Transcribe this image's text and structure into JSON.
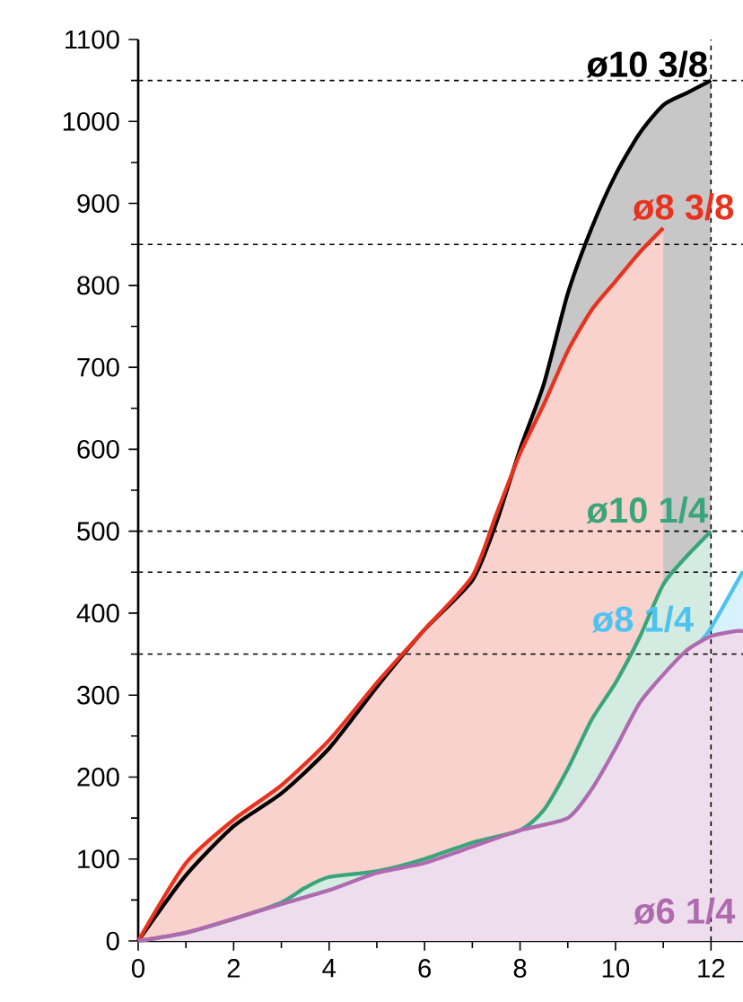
{
  "chart_data": {
    "type": "area",
    "xlim": [
      0,
      12.67
    ],
    "ylim": [
      0,
      1100
    ],
    "xticks": [
      0,
      {
        "value": 1,
        "label": null
      },
      2,
      {
        "value": 3,
        "label": null
      },
      4,
      {
        "value": 5,
        "label": null
      },
      6,
      {
        "value": 7,
        "label": null
      },
      8,
      {
        "value": 9,
        "label": null
      },
      10,
      {
        "value": 11,
        "label": null
      },
      12
    ],
    "yticks": [
      0,
      {
        "value": 50,
        "label": null
      },
      100,
      {
        "value": 150,
        "label": null
      },
      200,
      {
        "value": 250,
        "label": null
      },
      300,
      {
        "value": 350,
        "label": null
      },
      400,
      {
        "value": 450,
        "label": null
      },
      500,
      {
        "value": 550,
        "label": null
      },
      600,
      {
        "value": 650,
        "label": null
      },
      700,
      {
        "value": 750,
        "label": null
      },
      800,
      {
        "value": 850,
        "label": null
      },
      900,
      {
        "value": 950,
        "label": null
      },
      1000,
      {
        "value": 1050,
        "label": null
      },
      1100
    ],
    "line_style": "solid",
    "marker": "none",
    "grid": false,
    "series": [
      {
        "name": "ø10 3/8",
        "color": "#000000",
        "x": [
          0,
          1,
          2,
          3,
          4,
          5,
          6,
          7,
          7.5,
          8,
          8.5,
          9,
          9.5,
          10,
          10.5,
          11,
          11.5,
          12
        ],
        "values": [
          0,
          80,
          140,
          180,
          235,
          310,
          380,
          440,
          510,
          600,
          680,
          790,
          870,
          935,
          985,
          1020,
          1035,
          1050
        ]
      },
      {
        "name": "ø8 3/8",
        "color": "#e8321e",
        "x": [
          0,
          1,
          2,
          3,
          4,
          5,
          6,
          7,
          7.5,
          8,
          8.5,
          9,
          9.5,
          10,
          10.5,
          11
        ],
        "values": [
          0,
          95,
          148,
          190,
          245,
          315,
          380,
          445,
          520,
          595,
          655,
          720,
          770,
          805,
          840,
          870
        ]
      },
      {
        "name": "ø10 1/4",
        "color": "#3aa57a",
        "x": [
          0,
          1,
          2,
          3,
          3.5,
          4,
          5,
          6,
          7,
          8,
          8.5,
          9,
          9.5,
          10,
          10.5,
          11,
          11.5,
          12
        ],
        "values": [
          0,
          10,
          27,
          47,
          65,
          78,
          85,
          100,
          120,
          135,
          160,
          210,
          270,
          315,
          370,
          435,
          470,
          500
        ]
      },
      {
        "name": "ø8 1/4",
        "color": "#4fc3f0",
        "x": [
          11.8,
          12,
          12.67
        ],
        "values": [
          367,
          382,
          451
        ]
      },
      {
        "name": "ø6 1/4",
        "color": "#b06aaf",
        "x": [
          0,
          1,
          2,
          3,
          4,
          5,
          6,
          7,
          8,
          9,
          9.5,
          10,
          10.5,
          11,
          11.5,
          12,
          12.5,
          12.67
        ],
        "values": [
          0,
          10,
          27,
          45,
          62,
          83,
          95,
          115,
          135,
          150,
          185,
          235,
          290,
          325,
          355,
          372,
          378,
          378
        ]
      }
    ],
    "ref_lines": [
      {
        "axis": "y",
        "value": 1050,
        "line_style": "dashed"
      },
      {
        "axis": "y",
        "value": 850,
        "line_style": "dashed"
      },
      {
        "axis": "y",
        "value": 500,
        "line_style": "dashed"
      },
      {
        "axis": "y",
        "value": 450,
        "line_style": "dashed"
      },
      {
        "axis": "y",
        "value": 350,
        "line_style": "dashed"
      },
      {
        "axis": "x",
        "value": 12,
        "line_style": "dashed"
      }
    ]
  }
}
